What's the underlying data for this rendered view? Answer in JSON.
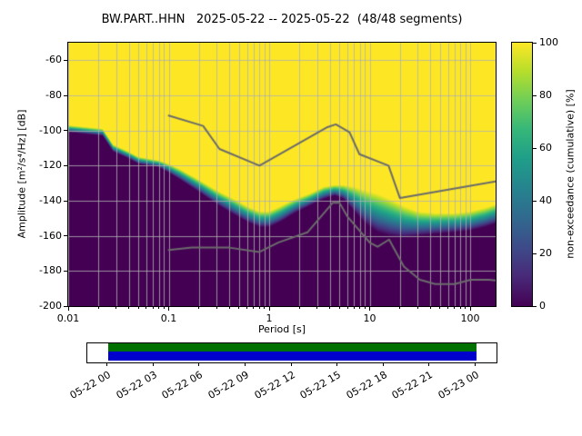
{
  "chart_data": {
    "type": "heatmap",
    "title": "BW.PART..HHN   2025-05-22 -- 2025-05-22  (48/48 segments)",
    "xlabel": "Period [s]",
    "ylabel": "Amplitude [m²/s⁴/Hz] [dB]",
    "colorbar_label": "non-exceedance (cumulative) [%]",
    "grid": true,
    "x_axis": {
      "scale": "log",
      "min": 0.01,
      "max": 179,
      "major_ticks": [
        0.01,
        0.1,
        1,
        10,
        100
      ],
      "major_tick_labels": [
        "0.01",
        "0.1",
        "1",
        "10",
        "100"
      ]
    },
    "y_axis": {
      "min": -200,
      "max": -50,
      "ticks": [
        -60,
        -80,
        -100,
        -120,
        -140,
        -160,
        -180,
        -200
      ],
      "tick_labels": [
        "-60",
        "-80",
        "-100",
        "-120",
        "-140",
        "-160",
        "-180",
        "-200"
      ]
    },
    "colorbar": {
      "min": 0,
      "max": 100,
      "ticks": [
        0,
        20,
        40,
        60,
        80,
        100
      ],
      "tick_labels": [
        "0",
        "20",
        "40",
        "60",
        "80",
        "100"
      ],
      "colormap": "viridis",
      "stops": [
        [
          0.0,
          "#440154"
        ],
        [
          0.11,
          "#482878"
        ],
        [
          0.22,
          "#3e4a89"
        ],
        [
          0.33,
          "#31688e"
        ],
        [
          0.44,
          "#26828e"
        ],
        [
          0.56,
          "#1f9e89"
        ],
        [
          0.67,
          "#35b779"
        ],
        [
          0.78,
          "#6ece58"
        ],
        [
          0.89,
          "#b5de2b"
        ],
        [
          1.0,
          "#fde725"
        ]
      ]
    },
    "distribution_envelope": {
      "comment": "upper_db = amplitude where non-exceedance reaches 100%, lower_db = where it is 0%",
      "periods": [
        0.01,
        0.022,
        0.028,
        0.04,
        0.05,
        0.08,
        0.1,
        0.13,
        0.2,
        0.3,
        0.45,
        0.6,
        0.8,
        1.0,
        1.3,
        1.8,
        2.5,
        3.5,
        4.5,
        5.5,
        7,
        9,
        12,
        16,
        22,
        30,
        45,
        70,
        100,
        140,
        179
      ],
      "upper_db": [
        -97,
        -99,
        -108,
        -112,
        -115,
        -117,
        -119,
        -122,
        -128,
        -134,
        -139,
        -143,
        -146,
        -146,
        -143,
        -139,
        -136,
        -132,
        -131,
        -131,
        -132,
        -134,
        -136,
        -139,
        -143,
        -146,
        -147,
        -147,
        -146,
        -144,
        -142
      ],
      "lower_db": [
        -101,
        -103,
        -112,
        -116,
        -119,
        -121,
        -124,
        -128,
        -135,
        -142,
        -148,
        -152,
        -155,
        -155,
        -152,
        -147,
        -143,
        -139,
        -137,
        -139,
        -146,
        -153,
        -158,
        -160,
        -161,
        -160,
        -159,
        -158,
        -157,
        -155,
        -153
      ]
    },
    "noise_models": {
      "color": "#6b6b6b",
      "nhnm": [
        [
          0.1,
          -91.5
        ],
        [
          0.22,
          -97.4
        ],
        [
          0.32,
          -110.5
        ],
        [
          0.8,
          -120.0
        ],
        [
          3.8,
          -98.1
        ],
        [
          4.6,
          -96.5
        ],
        [
          6.3,
          -101.0
        ],
        [
          7.9,
          -113.5
        ],
        [
          15.4,
          -120.0
        ],
        [
          20.0,
          -138.5
        ],
        [
          179.0,
          -129.0
        ]
      ],
      "nlnm": [
        [
          0.1,
          -168.0
        ],
        [
          0.17,
          -166.7
        ],
        [
          0.4,
          -166.7
        ],
        [
          0.8,
          -169.2
        ],
        [
          1.24,
          -163.7
        ],
        [
          2.4,
          -158.0
        ],
        [
          4.3,
          -141.1
        ],
        [
          5.0,
          -141.1
        ],
        [
          6.0,
          -149.0
        ],
        [
          10.0,
          -163.8
        ],
        [
          12.0,
          -166.2
        ],
        [
          15.6,
          -162.1
        ],
        [
          21.9,
          -177.5
        ],
        [
          31.6,
          -185.0
        ],
        [
          45.0,
          -187.5
        ],
        [
          70.0,
          -187.5
        ],
        [
          101.0,
          -185.0
        ],
        [
          154.0,
          -185.0
        ],
        [
          179.0,
          -185.4
        ]
      ]
    }
  },
  "coverage": {
    "tick_labels": [
      "05-22 00",
      "05-22 03",
      "05-22 06",
      "05-22 09",
      "05-22 12",
      "05-22 15",
      "05-22 18",
      "05-22 21",
      "05-23 00"
    ],
    "bar_colors": {
      "top": "#007000",
      "bottom": "#0000cd"
    },
    "fill_fraction": {
      "start": 0.05,
      "end": 0.95
    }
  }
}
